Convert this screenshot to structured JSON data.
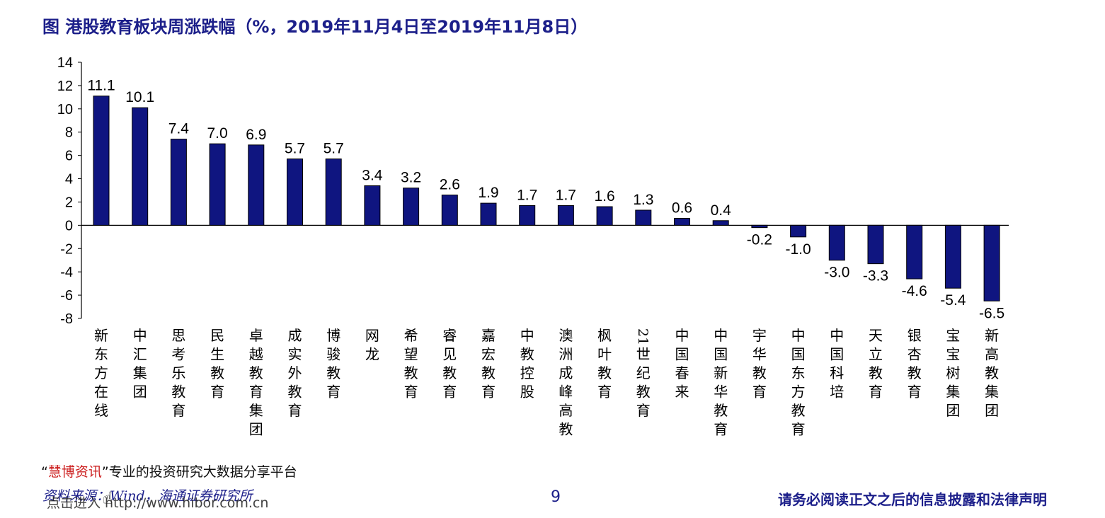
{
  "header": {
    "title": "图  港股教育板块周涨跌幅（%，2019年11月4日至2019年11月8日）"
  },
  "chart_data": {
    "type": "bar",
    "title": "图  港股教育板块周涨跌幅（%，2019年11月4日至2019年11月8日）",
    "xlabel": "",
    "ylabel": "",
    "ylim": [
      -8,
      14
    ],
    "yticks": [
      14,
      12,
      10,
      8,
      6,
      4,
      2,
      0,
      -2,
      -4,
      -6,
      -8
    ],
    "grid": false,
    "categories": [
      "新东方在线",
      "中汇集团",
      "思考乐教育",
      "民生教育",
      "卓越教育集团",
      "成实外教育",
      "博骏教育",
      "网龙",
      "希望教育",
      "睿见教育",
      "嘉宏教育",
      "中教控股",
      "澳洲成峰高教",
      "枫叶教育",
      "21世纪教育",
      "中国春来",
      "中国新华教育",
      "宇华教育",
      "中国东方教育",
      "中国科培",
      "天立教育",
      "银杏教育",
      "宝宝树集团",
      "新高教集团"
    ],
    "values": [
      11.1,
      10.1,
      7.4,
      7.0,
      6.9,
      5.7,
      5.7,
      3.4,
      3.2,
      2.6,
      1.9,
      1.7,
      1.7,
      1.6,
      1.3,
      0.6,
      0.4,
      -0.2,
      -1.0,
      -3.0,
      -3.3,
      -4.6,
      -5.4,
      -6.5
    ],
    "value_labels": [
      "11.1",
      "10.1",
      "7.4",
      "7.0",
      "6.9",
      "5.7",
      "5.7",
      "3.4",
      "3.2",
      "2.6",
      "1.9",
      "1.7",
      "1.7",
      "1.6",
      "1.3",
      "0.6",
      "0.4",
      "-0.2",
      "-1.0",
      "-3.0",
      "-3.3",
      "-4.6",
      "-5.4",
      "-6.5"
    ],
    "bar_color": "#0f1580"
  },
  "footer": {
    "promo_quote_open": "“",
    "promo_brand": "慧博资讯",
    "promo_quote_close": "”",
    "promo_text": "专业的投资研究大数据分享平台",
    "source": "资料来源：Wind，海通证券研究所",
    "link": "点击进入   http://www.hibor.com.cn",
    "page_number": "9",
    "disclaimer": "请务必阅读正文之后的信息披露和法律声明"
  }
}
